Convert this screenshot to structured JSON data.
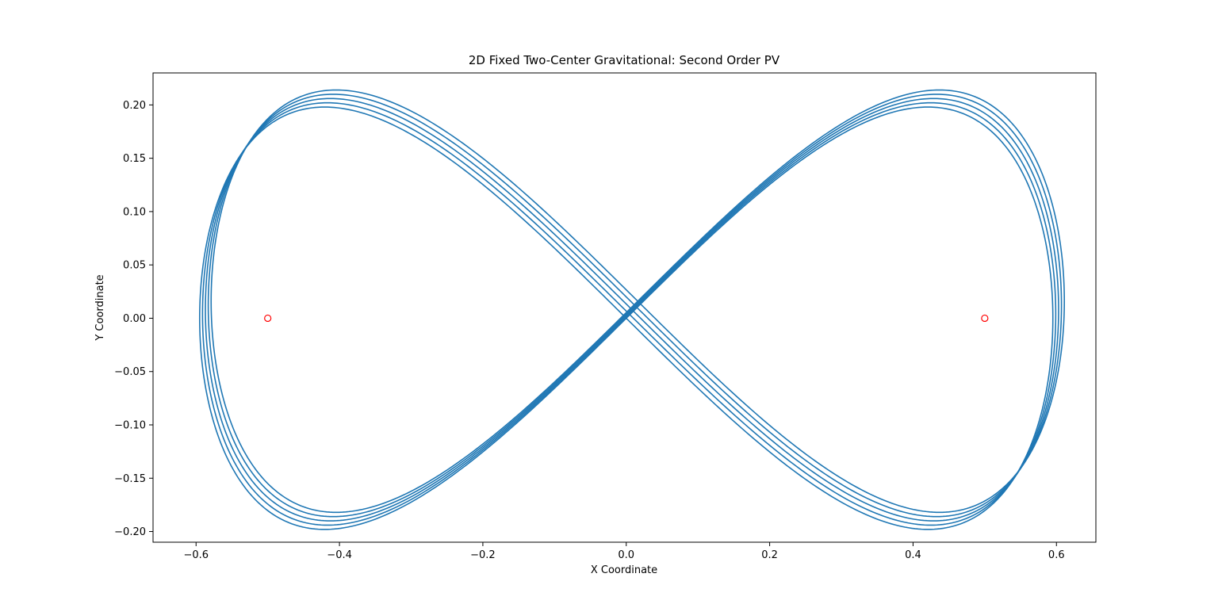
{
  "chart_data": {
    "type": "line",
    "title": "2D Fixed Two-Center Gravitational: Second Order PV",
    "xlabel": "X Coordinate",
    "ylabel": "Y Coordinate",
    "xlim": [
      -0.66,
      0.655
    ],
    "ylim": [
      -0.21,
      0.23
    ],
    "xticks": [
      -0.6,
      -0.4,
      -0.2,
      0.0,
      0.2,
      0.4,
      0.6
    ],
    "xtick_labels": [
      "−0.6",
      "−0.4",
      "−0.2",
      "0.0",
      "0.2",
      "0.4",
      "0.6"
    ],
    "yticks": [
      -0.2,
      -0.15,
      -0.1,
      -0.05,
      0.0,
      0.05,
      0.1,
      0.15,
      0.2
    ],
    "ytick_labels": [
      "−0.20",
      "−0.15",
      "−0.10",
      "−0.05",
      "0.00",
      "0.05",
      "0.10",
      "0.15",
      "0.20"
    ],
    "grid": false,
    "series": [
      {
        "color": "#1f77b4",
        "style": "line",
        "loops": [
          {
            "x0": 0.0,
            "dy": 0.0
          },
          {
            "x0": 0.004,
            "dy": 0.004
          },
          {
            "x0": 0.008,
            "dy": 0.008
          },
          {
            "x0": 0.012,
            "dy": 0.012
          },
          {
            "x0": 0.016,
            "dy": 0.016
          }
        ],
        "amplitude_x": 0.595,
        "amplitude_y": 0.198
      },
      {
        "color": "#ff0000",
        "style": "hollow-marker",
        "x": [
          -0.5,
          0.5
        ],
        "y": [
          0.0,
          0.0
        ]
      }
    ]
  }
}
